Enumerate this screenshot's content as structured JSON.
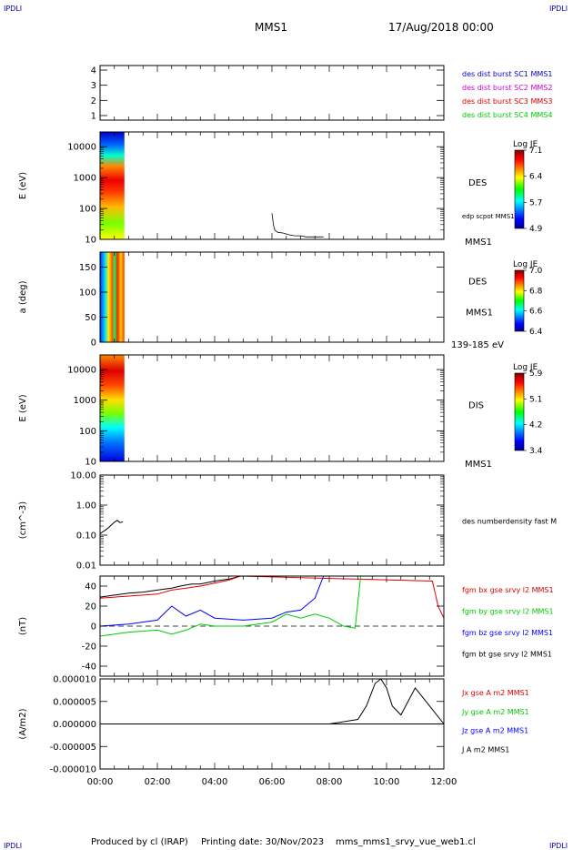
{
  "header": {
    "corner_tl": "IPDLI",
    "corner_tr": "IPDLI",
    "corner_bl": "IPDLI",
    "corner_br": "IPDLI",
    "spacecraft": "MMS1",
    "date_time": "17/Aug/2018 00:00"
  },
  "footer": {
    "produced_by": "Produced by cl (IRAP)",
    "printing_date": "Printing date: 30/Nov/2023",
    "filename": "mms_mms1_srvy_vue_web1.cl"
  },
  "x_axis": {
    "ticks": [
      "00:00",
      "02:00",
      "04:00",
      "06:00",
      "08:00",
      "10:00",
      "12:00"
    ],
    "range_hours": [
      0,
      12
    ]
  },
  "colors": {
    "mms1": "#0000cc",
    "mms2": "#cc00cc",
    "mms3": "#dd0000",
    "mms4": "#00cc00",
    "bx": "#dd0000",
    "by": "#00cc00",
    "bz": "#0000ff",
    "bt": "#000000"
  },
  "chart_data": [
    {
      "id": "availability",
      "type": "scatter",
      "ylabel": "",
      "y_ticks": [
        "1",
        "2",
        "3",
        "4"
      ],
      "ylim": [
        0.7,
        4.3
      ],
      "legend": [
        {
          "text": "des dist burst SC1 MMS1",
          "color": "#0000cc"
        },
        {
          "text": "des dist burst SC2 MMS2",
          "color": "#cc00cc"
        },
        {
          "text": "des dist burst SC3 MMS3",
          "color": "#dd0000"
        },
        {
          "text": "des dist burst SC4 MMS4",
          "color": "#00cc00"
        }
      ],
      "series": []
    },
    {
      "id": "des-energy",
      "type": "heatmap",
      "ylabel": "E (eV)",
      "y_ticks": [
        "10",
        "100",
        "1000",
        "10000"
      ],
      "y_log": true,
      "ylim": [
        10,
        30000
      ],
      "x_range_hours": [
        0,
        0.85
      ],
      "label": "DES",
      "overlay_label": "edp scpot MMS1",
      "bottom_label": "MMS1",
      "colorbar": {
        "title": "Log JE",
        "ticks": [
          "7.1",
          "6.4",
          "5.7",
          "4.9"
        ],
        "range": [
          4.9,
          7.1
        ]
      },
      "overlay_series": {
        "name": "edp scpot MMS1",
        "x": [
          6.0,
          6.05,
          6.1,
          6.2,
          6.4,
          6.6,
          6.8,
          7.0,
          7.2,
          7.4,
          7.6,
          7.8
        ],
        "y": [
          70,
          30,
          20,
          17,
          16,
          14,
          13,
          13,
          12,
          12,
          12,
          12
        ]
      }
    },
    {
      "id": "des-pitch",
      "type": "heatmap",
      "ylabel": "a (deg)",
      "y_ticks": [
        "0",
        "50",
        "100",
        "150"
      ],
      "ylim": [
        0,
        180
      ],
      "x_range_hours": [
        0,
        0.85
      ],
      "label": "DES",
      "sub_label": "MMS1",
      "bottom_label": "139-185 eV",
      "colorbar": {
        "title": "Log JE",
        "ticks": [
          "7.0",
          "6.8",
          "6.6",
          "6.4"
        ],
        "range": [
          6.4,
          7.0
        ]
      }
    },
    {
      "id": "dis-energy",
      "type": "heatmap",
      "ylabel": "E (eV)",
      "y_ticks": [
        "10",
        "100",
        "1000",
        "10000"
      ],
      "y_log": true,
      "ylim": [
        10,
        30000
      ],
      "x_range_hours": [
        0,
        0.85
      ],
      "label": "DIS",
      "bottom_label": "MMS1",
      "colorbar": {
        "title": "Log JE",
        "ticks": [
          "5.9",
          "5.1",
          "4.2",
          "3.4"
        ],
        "range": [
          3.4,
          5.9
        ]
      }
    },
    {
      "id": "density",
      "type": "line",
      "ylabel": "(cm^-3)",
      "y_ticks": [
        "0.01",
        "0.10",
        "1.00",
        "10.00"
      ],
      "y_log": true,
      "ylim": [
        0.01,
        10
      ],
      "legend": [
        {
          "text": "des numberdensity fast M",
          "color": "#000000"
        }
      ],
      "series": [
        {
          "name": "des numberdensity fast M",
          "color": "#000000",
          "x": [
            0.0,
            0.1,
            0.2,
            0.3,
            0.4,
            0.5,
            0.6,
            0.7,
            0.8
          ],
          "y": [
            0.11,
            0.13,
            0.15,
            0.18,
            0.22,
            0.27,
            0.31,
            0.26,
            0.28
          ]
        }
      ]
    },
    {
      "id": "fgm",
      "type": "line",
      "ylabel": "(nT)",
      "y_ticks": [
        "-40",
        "-20",
        "0",
        "20",
        "40"
      ],
      "ylim": [
        -50,
        50
      ],
      "legend": [
        {
          "text": "fgm bx gse srvy l2 MMS1",
          "color": "#dd0000"
        },
        {
          "text": "fgm by gse srvy l2 MMS1",
          "color": "#00cc00"
        },
        {
          "text": "fgm bz gse srvy l2 MMS1",
          "color": "#0000ff"
        },
        {
          "text": "fgm bt gse srvy l2 MMS1",
          "color": "#000000"
        }
      ],
      "series": [
        {
          "name": "fgm bt gse srvy l2 MMS1",
          "color": "#000000",
          "x": [
            0.0,
            0.5,
            1.0,
            1.5,
            2.0,
            2.5,
            2.8,
            3.0,
            3.2,
            3.5,
            4.0,
            4.5,
            4.9
          ],
          "y": [
            29,
            31,
            33,
            34,
            36,
            38,
            40,
            41,
            42,
            42,
            45,
            47,
            50
          ]
        },
        {
          "name": "fgm bx gse srvy l2 MMS1",
          "color": "#dd0000",
          "x": [
            0.0,
            1.0,
            2.0,
            2.5,
            3.0,
            3.5,
            4.0,
            4.5,
            4.9,
            11.6,
            11.8,
            12.0
          ],
          "y": [
            28,
            30,
            32,
            36,
            38,
            40,
            43,
            46,
            50,
            45,
            20,
            8
          ]
        },
        {
          "name": "fgm by gse srvy l2 MMS1",
          "color": "#00cc00",
          "x": [
            0.0,
            1.0,
            2.0,
            2.5,
            3.0,
            3.5,
            4.0,
            5.0,
            6.0,
            6.5,
            7.0,
            7.5,
            8.0,
            8.5,
            8.9,
            9.1
          ],
          "y": [
            -10,
            -6,
            -4,
            -8,
            -4,
            2,
            0,
            0,
            4,
            12,
            8,
            12,
            8,
            0,
            -2,
            50
          ]
        },
        {
          "name": "fgm bz gse srvy l2 MMS1",
          "color": "#0000ff",
          "x": [
            0.0,
            1.0,
            2.0,
            2.5,
            3.0,
            3.5,
            4.0,
            5.0,
            6.0,
            6.5,
            7.0,
            7.5,
            7.8
          ],
          "y": [
            0,
            2,
            6,
            20,
            10,
            16,
            8,
            6,
            8,
            14,
            16,
            28,
            50
          ]
        }
      ]
    },
    {
      "id": "current",
      "type": "line",
      "ylabel": "(A/m2)",
      "y_ticks": [
        "-0.000010",
        "-0.000005",
        "0.000000",
        "0.000005",
        "0.000010"
      ],
      "ylim": [
        -1e-05,
        1e-05
      ],
      "legend": [
        {
          "text": "Jx gse A m2 MMS1",
          "color": "#dd0000"
        },
        {
          "text": "Jy gse A m2 MMS1",
          "color": "#00cc00"
        },
        {
          "text": "Jz gse A m2 MMS1",
          "color": "#0000ff"
        },
        {
          "text": "J A m2 MMS1",
          "color": "#000000"
        }
      ],
      "series": [
        {
          "name": "J A m2 MMS1",
          "color": "#000000",
          "x": [
            0.0,
            2.0,
            4.0,
            6.0,
            8.0,
            9.0,
            9.3,
            9.6,
            9.8,
            10.0,
            10.2,
            10.5,
            11.0,
            11.5,
            12.0
          ],
          "y": [
            0,
            0,
            0,
            0,
            0,
            1e-06,
            4e-06,
            9e-06,
            1e-05,
            8e-06,
            4e-06,
            2e-06,
            8e-06,
            4e-06,
            0
          ]
        }
      ]
    }
  ]
}
